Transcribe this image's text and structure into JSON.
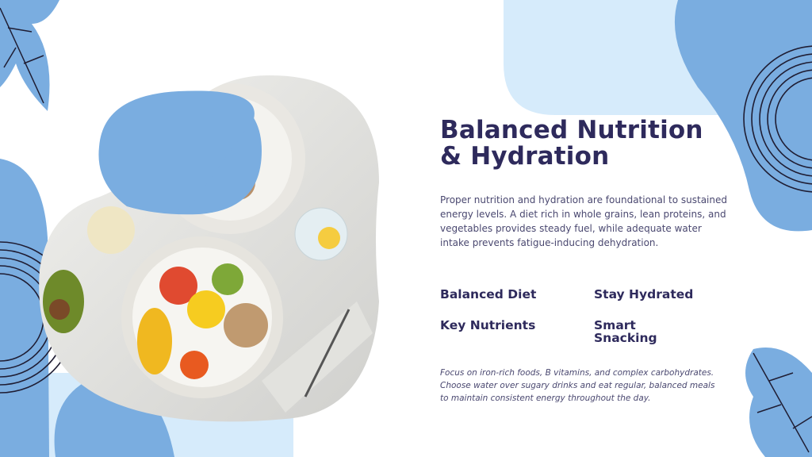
{
  "slide": {
    "title": "Balanced Nutrition & Hydration",
    "intro": "Proper nutrition and hydration are foundational to sustained energy levels. A diet rich in whole grains, lean proteins, and vegetables provides steady fuel, while adequate water intake prevents fatigue-inducing dehydration.",
    "features": [
      {
        "label": "Balanced Diet"
      },
      {
        "label": "Stay Hydrated"
      },
      {
        "label": "Key Nutrients"
      },
      {
        "label": "Smart Snacking"
      }
    ],
    "note": "Focus on iron-rich foods, B vitamins, and complex carbohydrates. Choose water over sugary drinks and eat regular, balanced meals to maintain consistent energy throughout the day.",
    "image": "food-plates-and-water-photo"
  },
  "colors": {
    "primary": "#2e2a5c",
    "accent_blue": "#7aade0",
    "light_blue": "#d6ebfb"
  }
}
